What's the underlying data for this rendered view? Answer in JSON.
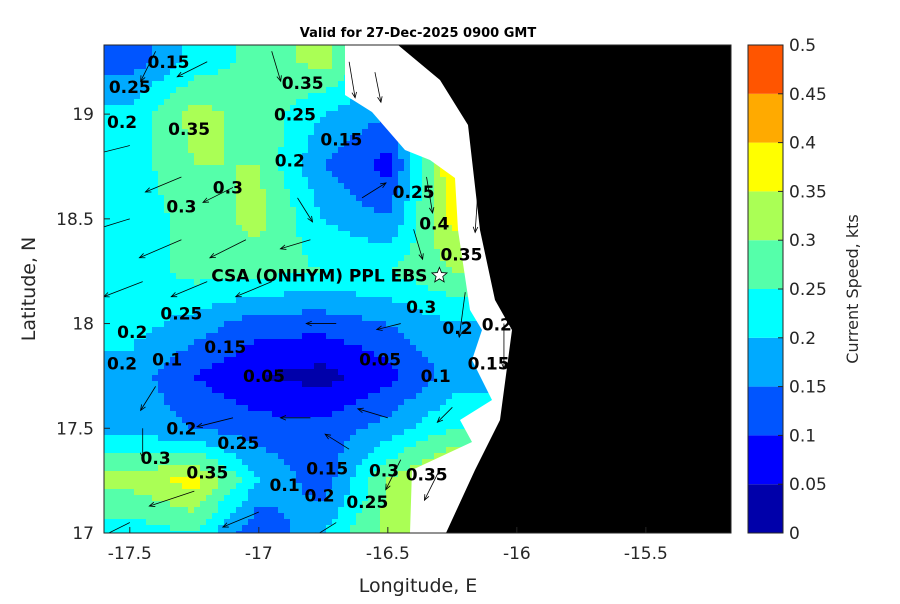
{
  "chart_data": {
    "type": "heatmap",
    "title": "Valid for 27-Dec-2025 0900 GMT",
    "xlabel": "Longitude, E",
    "ylabel": "Latitude, N",
    "xlim": [
      -17.6,
      -15.17
    ],
    "ylim": [
      17.0,
      19.33
    ],
    "xticks": [
      "-17.5",
      "-17",
      "-16.5",
      "-16",
      "-15.5"
    ],
    "xtick_values": [
      -17.5,
      -17,
      -16.5,
      -16,
      -15.5
    ],
    "yticks": [
      "17",
      "17.5",
      "18",
      "18.5",
      "19"
    ],
    "ytick_values": [
      17,
      17.5,
      18,
      18.5,
      19
    ],
    "colorbar": {
      "label": "Current Speed, kts",
      "ticks": [
        "0",
        "0.05",
        "0.1",
        "0.15",
        "0.2",
        "0.25",
        "0.3",
        "0.35",
        "0.4",
        "0.45",
        "0.5"
      ],
      "range": [
        0,
        0.5
      ],
      "colors": [
        "#0000aa",
        "#0000ff",
        "#0055ff",
        "#00aaff",
        "#00ffff",
        "#55ffaa",
        "#aaff55",
        "#ffff00",
        "#ffaa00",
        "#ff5500"
      ]
    },
    "grid_lon": [
      -17.5,
      -17.25,
      -17.0,
      -16.75,
      -16.5,
      -16.25
    ],
    "grid_lat": [
      19.25,
      19.0,
      18.75,
      18.5,
      18.25,
      18.0,
      17.75,
      17.5,
      17.25,
      17.0
    ],
    "speed_grid": [
      [
        0.12,
        0.22,
        0.27,
        0.32,
        0.2,
        0.3
      ],
      [
        0.22,
        0.32,
        0.28,
        0.2,
        0.15,
        0.3
      ],
      [
        0.22,
        0.3,
        0.3,
        0.15,
        0.08,
        0.4
      ],
      [
        0.22,
        0.27,
        0.32,
        0.2,
        0.15,
        0.37
      ],
      [
        0.22,
        0.27,
        0.27,
        0.25,
        0.25,
        0.3
      ],
      [
        0.22,
        0.18,
        0.12,
        0.12,
        0.15,
        0.2
      ],
      [
        0.18,
        0.1,
        0.05,
        0.03,
        0.08,
        0.17
      ],
      [
        0.18,
        0.15,
        0.12,
        0.12,
        0.17,
        0.25
      ],
      [
        0.32,
        0.37,
        0.2,
        0.12,
        0.3,
        0.4
      ],
      [
        0.22,
        0.25,
        0.1,
        0.2,
        0.32,
        0.3
      ]
    ],
    "contour_labels": [
      {
        "text": "0.15",
        "lon": -17.35,
        "lat": 19.22
      },
      {
        "text": "0.25",
        "lon": -17.5,
        "lat": 19.1
      },
      {
        "text": "0.2",
        "lon": -17.6,
        "lat": 19.02
      },
      {
        "text": "0.35",
        "lon": -17.27,
        "lat": 18.9
      },
      {
        "text": "0.3",
        "lon": -17.12,
        "lat": 18.62
      },
      {
        "text": "0.3",
        "lon": -17.3,
        "lat": 18.53
      },
      {
        "text": "0.35",
        "lon": -16.83,
        "lat": 19.12
      },
      {
        "text": "0.25",
        "lon": -16.86,
        "lat": 18.97
      },
      {
        "text": "0.2",
        "lon": -16.88,
        "lat": 18.75
      },
      {
        "text": "0.15",
        "lon": -16.68,
        "lat": 18.85
      },
      {
        "text": "0.25",
        "lon": -16.4,
        "lat": 18.6
      },
      {
        "text": "0.4",
        "lon": -16.32,
        "lat": 18.45
      },
      {
        "text": "0.35",
        "lon": -16.3,
        "lat": 18.3
      },
      {
        "text": "0.25",
        "lon": -17.3,
        "lat": 18.02
      },
      {
        "text": "0.2",
        "lon": -17.32,
        "lat": 17.93
      },
      {
        "text": "0.15",
        "lon": -17.13,
        "lat": 17.86
      },
      {
        "text": "0.1",
        "lon": -17.27,
        "lat": 17.8
      },
      {
        "text": "0.2",
        "lon": -17.58,
        "lat": 17.78
      },
      {
        "text": "0.05",
        "lon": -16.98,
        "lat": 17.72
      },
      {
        "text": "0.05",
        "lon": -16.53,
        "lat": 17.8
      },
      {
        "text": "0.1",
        "lon": -16.4,
        "lat": 17.72
      },
      {
        "text": "0.15",
        "lon": -16.28,
        "lat": 17.78
      },
      {
        "text": "0.2",
        "lon": -16.23,
        "lat": 17.95
      },
      {
        "text": "0.25",
        "lon": -16.14,
        "lat": 17.88
      },
      {
        "text": "0.3",
        "lon": -16.2,
        "lat": 18.05
      },
      {
        "text": "0.2",
        "lon": -17.3,
        "lat": 17.47
      },
      {
        "text": "0.25",
        "lon": -17.25,
        "lat": 17.4
      },
      {
        "text": "0.3",
        "lon": -17.4,
        "lat": 17.33
      },
      {
        "text": "0.35",
        "lon": -17.37,
        "lat": 17.26
      },
      {
        "text": "0.1",
        "lon": -16.9,
        "lat": 17.2
      },
      {
        "text": "0.15",
        "lon": -16.82,
        "lat": 17.28
      },
      {
        "text": "0.2",
        "lon": -16.85,
        "lat": 17.15
      },
      {
        "text": "0.25",
        "lon": -16.75,
        "lat": 17.12
      },
      {
        "text": "0.3",
        "lon": -16.6,
        "lat": 17.27
      },
      {
        "text": "0.35",
        "lon": -16.52,
        "lat": 17.25
      }
    ],
    "vectors": [
      [
        -17.4,
        19.3,
        -0.05,
        -0.1
      ],
      [
        -17.2,
        19.25,
        -0.1,
        -0.05
      ],
      [
        -16.95,
        19.3,
        0.03,
        -0.1
      ],
      [
        -16.65,
        19.25,
        0.02,
        -0.12
      ],
      [
        -16.55,
        19.2,
        0.02,
        -0.1
      ],
      [
        -17.5,
        18.85,
        -0.12,
        -0.03
      ],
      [
        -17.3,
        18.7,
        -0.12,
        -0.05
      ],
      [
        -17.1,
        18.65,
        -0.1,
        -0.05
      ],
      [
        -16.85,
        18.6,
        0.05,
        -0.08
      ],
      [
        -16.6,
        18.6,
        0.08,
        0.05
      ],
      [
        -16.35,
        18.7,
        0.02,
        -0.12
      ],
      [
        -16.15,
        18.65,
        -0.01,
        -0.15
      ],
      [
        -17.5,
        18.5,
        -0.13,
        -0.04
      ],
      [
        -17.3,
        18.4,
        -0.14,
        -0.06
      ],
      [
        -17.05,
        18.4,
        -0.12,
        -0.06
      ],
      [
        -16.8,
        18.4,
        -0.1,
        -0.03
      ],
      [
        -16.4,
        18.45,
        0.03,
        -0.1
      ],
      [
        -16.05,
        18.45,
        0.0,
        -0.2
      ],
      [
        -17.45,
        18.2,
        -0.13,
        -0.05
      ],
      [
        -17.2,
        18.2,
        -0.12,
        -0.05
      ],
      [
        -16.95,
        18.2,
        -0.12,
        -0.05
      ],
      [
        -16.7,
        18.0,
        -0.1,
        0.0
      ],
      [
        -16.45,
        18.0,
        -0.08,
        -0.02
      ],
      [
        -16.2,
        18.15,
        -0.02,
        -0.15
      ],
      [
        -16.05,
        18.0,
        0.0,
        -0.15
      ],
      [
        -17.4,
        17.7,
        -0.05,
        -0.08
      ],
      [
        -17.1,
        17.55,
        -0.12,
        -0.03
      ],
      [
        -16.8,
        17.55,
        -0.1,
        0.0
      ],
      [
        -16.5,
        17.55,
        -0.1,
        0.03
      ],
      [
        -16.25,
        17.6,
        -0.05,
        -0.05
      ],
      [
        -17.45,
        17.5,
        0.0,
        -0.1
      ],
      [
        -17.25,
        17.2,
        -0.15,
        -0.05
      ],
      [
        -17.0,
        17.1,
        -0.12,
        -0.05
      ],
      [
        -16.7,
        17.05,
        -0.08,
        -0.05
      ],
      [
        -16.45,
        17.35,
        -0.05,
        -0.1
      ],
      [
        -16.3,
        17.3,
        -0.05,
        -0.1
      ],
      [
        -16.65,
        17.4,
        -0.08,
        0.05
      ],
      [
        -17.5,
        17.05,
        -0.1,
        -0.05
      ]
    ],
    "site_label": "CSA (ONHYM) PPL EBS",
    "site": {
      "lon": -16.3,
      "lat": 18.23
    }
  }
}
